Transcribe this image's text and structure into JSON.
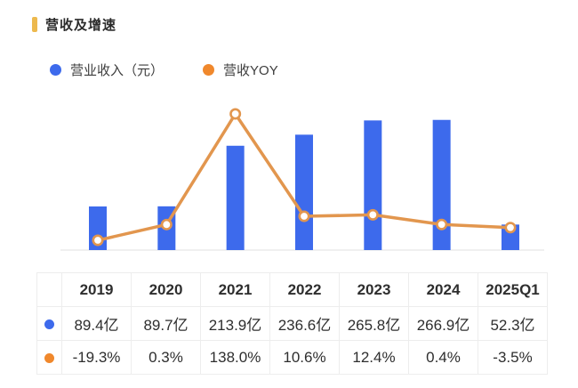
{
  "page": {
    "title": "营收及增速",
    "accent_color": "#EDB94E"
  },
  "legend": [
    {
      "label": "营业收入（元）",
      "color": "#3D6AEC"
    },
    {
      "label": "营收YOY",
      "color": "#F0882C"
    }
  ],
  "chart_data": {
    "type": "bar+line",
    "title": "营收及增速",
    "categories": [
      "2019",
      "2020",
      "2021",
      "2022",
      "2023",
      "2024",
      "2025Q1"
    ],
    "series": [
      {
        "name": "营业收入（元）",
        "type": "bar",
        "unit": "亿",
        "values": [
          89.4,
          89.7,
          213.9,
          236.6,
          265.8,
          266.9,
          52.3
        ],
        "color": "#3D6AEC"
      },
      {
        "name": "营收YOY",
        "type": "line",
        "unit": "%",
        "values": [
          -19.3,
          0.3,
          138.0,
          10.6,
          12.4,
          0.4,
          -3.5
        ],
        "color": "#E2964E",
        "marker_fill": "#FFFFFF"
      }
    ],
    "grid": false,
    "legend_position": "top",
    "x_axis_visible": true,
    "baseline_color": "#ECECEC",
    "value_axis_labels_visible": false
  },
  "table": {
    "header": [
      "",
      "2019",
      "2020",
      "2021",
      "2022",
      "2023",
      "2024",
      "2025Q1"
    ],
    "rows": [
      {
        "dot_color": "#3D6AEC",
        "cells": [
          "89.4亿",
          "89.7亿",
          "213.9亿",
          "236.6亿",
          "265.8亿",
          "266.9亿",
          "52.3亿"
        ]
      },
      {
        "dot_color": "#F0882C",
        "cells": [
          "-19.3%",
          "0.3%",
          "138.0%",
          "10.6%",
          "12.4%",
          "0.4%",
          "-3.5%"
        ]
      }
    ]
  }
}
